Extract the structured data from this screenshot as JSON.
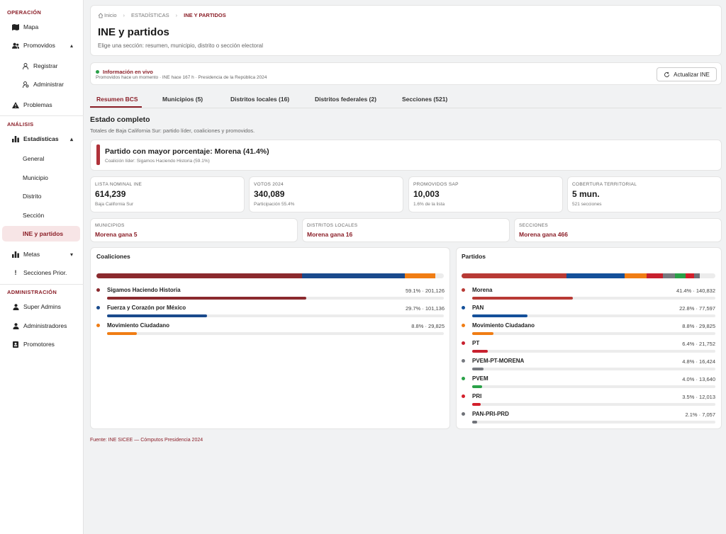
{
  "sidebar": {
    "sections": [
      {
        "title": "OPERACIÓN"
      },
      {
        "title": "ANÁLISIS"
      },
      {
        "title": "ADMINISTRACIÓN"
      }
    ],
    "items": {
      "mapa": "Mapa",
      "promovidos": "Promovidos",
      "registrar": "Registrar",
      "administrar": "Administrar",
      "problemas": "Problemas",
      "estadisticas": "Estadísticas",
      "general": "General",
      "municipio": "Municipio",
      "distrito": "Distrito",
      "seccion": "Sección",
      "ine": "INE y partidos",
      "metas": "Metas",
      "secciones_prior": "Secciones Prior.",
      "super_admins": "Super Admins",
      "administradores": "Administradores",
      "promotores": "Promotores"
    }
  },
  "breadcrumb": {
    "home": "Inicio",
    "section": "ESTADÍSTICAS",
    "current": "INE Y PARTIDOS"
  },
  "header": {
    "title": "INE y partidos",
    "subtitle": "Elige una sección: resumen, municipio, distrito o sección electoral"
  },
  "live": {
    "title": "Información en vivo",
    "detail": "Promovidos hace un momento · INE hace 167 h · Presidencia de la República 2024",
    "button": "Actualizar INE"
  },
  "tabs": [
    {
      "label": "Resumen BCS"
    },
    {
      "label": "Municipios (5)"
    },
    {
      "label": "Distritos locales (16)"
    },
    {
      "label": "Distritos federales (2)"
    },
    {
      "label": "Secciones (521)"
    }
  ],
  "summary": {
    "title": "Estado completo",
    "subtitle": "Totales de Baja California Sur: partido líder, coaliciones y promovidos.",
    "lead_title": "Partido con mayor porcentaje: Morena (41.4%)",
    "lead_sub": "Coalición líder: Sigamos Haciendo Historia (59.1%)"
  },
  "stats": [
    {
      "label": "LISTA NOMINAL INE",
      "value": "614,239",
      "sub": "Baja California Sur"
    },
    {
      "label": "VOTOS 2024",
      "value": "340,089",
      "sub": "Participación 55.4%"
    },
    {
      "label": "PROMOVIDOS SAP",
      "value": "10,003",
      "sub": "1.6% de la lista"
    },
    {
      "label": "COBERTURA TERRITORIAL",
      "value": "5 mun.",
      "sub": "521 secciones"
    }
  ],
  "winners": [
    {
      "label": "MUNICIPIOS",
      "value": "Morena gana 5"
    },
    {
      "label": "DISTRITOS LOCALES",
      "value": "Morena gana 16"
    },
    {
      "label": "SECCIONES",
      "value": "Morena gana 466"
    }
  ],
  "coaliciones": {
    "title": "Coaliciones",
    "rows": [
      {
        "name": "Sigamos Haciendo Historia",
        "value": "59.1% · 201,126",
        "pct": 59.1,
        "color": "#8b2a2e"
      },
      {
        "name": "Fuerza y Corazón por México",
        "value": "29.7% · 101,136",
        "pct": 29.7,
        "color": "#1a4a8c"
      },
      {
        "name": "Movimiento Ciudadano",
        "value": "8.8% · 29,825",
        "pct": 8.8,
        "color": "#f07d14"
      }
    ]
  },
  "partidos": {
    "title": "Partidos",
    "rows": [
      {
        "name": "Morena",
        "value": "41.4% · 140,832",
        "pct": 41.4,
        "color": "#b83a35"
      },
      {
        "name": "PAN",
        "value": "22.8% · 77,597",
        "pct": 22.8,
        "color": "#14509a"
      },
      {
        "name": "Movimiento Ciudadano",
        "value": "8.8% · 29,825",
        "pct": 8.8,
        "color": "#f07d14"
      },
      {
        "name": "PT",
        "value": "6.4% · 21,752",
        "pct": 6.4,
        "color": "#c8202e"
      },
      {
        "name": "PVEM-PT-MORENA",
        "value": "4.8% · 16,424",
        "pct": 4.8,
        "color": "#777a80"
      },
      {
        "name": "PVEM",
        "value": "4.0% · 13,640",
        "pct": 4.0,
        "color": "#2aa148"
      },
      {
        "name": "PRI",
        "value": "3.5% · 12,013",
        "pct": 3.5,
        "color": "#d3202c"
      },
      {
        "name": "PAN-PRI-PRD",
        "value": "2.1% · 7,057",
        "pct": 2.1,
        "color": "#6f7278"
      }
    ]
  },
  "footer": "Fuente: INE SICEE — Cómputos Presidencia 2024",
  "colors": {
    "accent": "#8b1f28",
    "accent_bg": "#f7e5e6"
  }
}
